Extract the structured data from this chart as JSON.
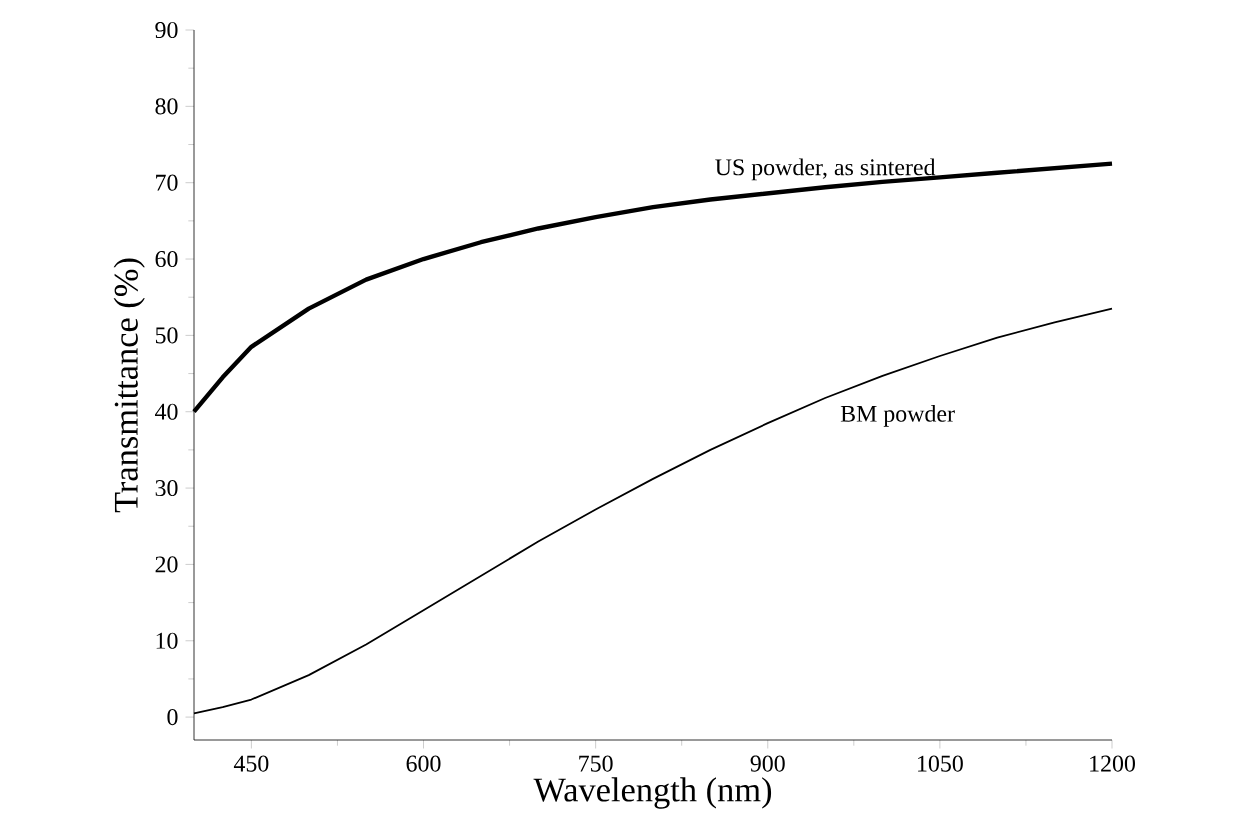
{
  "chart_data": {
    "type": "line",
    "xlabel": "Wavelength (nm)",
    "ylabel": "Transmittance (%)",
    "x": [
      400,
      425,
      450,
      500,
      550,
      600,
      650,
      700,
      750,
      800,
      850,
      900,
      950,
      1000,
      1050,
      1100,
      1150,
      1200
    ],
    "series": [
      {
        "name": "US powder, as sintered",
        "color": "#000000",
        "values": [
          40,
          44.5,
          48.5,
          53.5,
          57.3,
          60,
          62.2,
          64,
          65.5,
          66.8,
          67.8,
          68.6,
          69.4,
          70.1,
          70.7,
          71.3,
          71.9,
          72.5
        ]
      },
      {
        "name": "BM powder",
        "color": "#000000",
        "values": [
          0.5,
          1.3,
          2.3,
          5.5,
          9.5,
          14,
          18.5,
          23,
          27.2,
          31.2,
          35,
          38.5,
          41.8,
          44.7,
          47.3,
          49.7,
          51.7,
          53.5
        ]
      }
    ],
    "xlim": [
      400,
      1200
    ],
    "ylim": [
      -3,
      90
    ],
    "xticks": [
      450,
      600,
      750,
      900,
      1050,
      1200
    ],
    "yticks": [
      0,
      10,
      20,
      30,
      40,
      50,
      60,
      70,
      80,
      90
    ],
    "grid": false,
    "legend": false,
    "marker": "none",
    "line_style": "solid"
  }
}
